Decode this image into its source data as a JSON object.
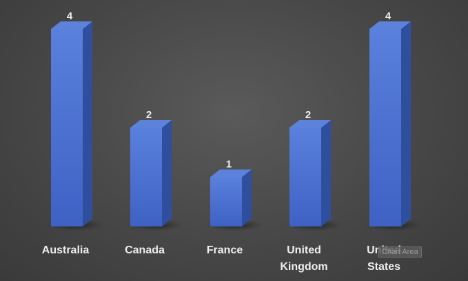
{
  "chart_data": {
    "type": "bar",
    "categories": [
      [
        "Australia"
      ],
      [
        "Canada"
      ],
      [
        "France"
      ],
      [
        "United",
        "Kingdom"
      ],
      [
        "United",
        "States"
      ]
    ],
    "values": [
      4,
      2,
      1,
      2,
      4
    ],
    "data_labels": [
      "4",
      "2",
      "1",
      "2",
      "4"
    ],
    "title": "",
    "xlabel": "",
    "ylabel": "",
    "ylim": [
      0,
      4
    ],
    "grid": false,
    "style": "3d-column",
    "colors": {
      "bar_front": "#4a72d4",
      "bar_side": "#2f4f9e",
      "bar_top": "#5d82dc",
      "background": "#484848",
      "text": "#eeeeee"
    }
  },
  "tooltip": {
    "text": "Chart Area"
  }
}
